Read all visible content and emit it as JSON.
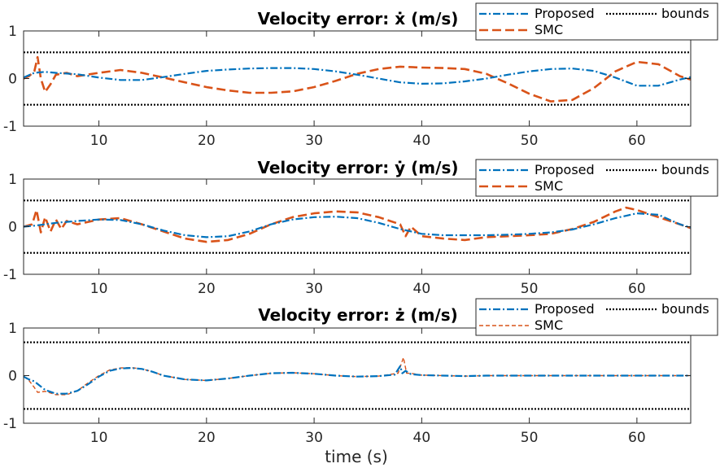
{
  "chart_data": [
    {
      "type": "line",
      "title": "Velocity error: ẋ (m/s)",
      "xlabel": "",
      "ylabel": "",
      "xlim": [
        3,
        65
      ],
      "ylim": [
        -1,
        1
      ],
      "xticks": [
        10,
        20,
        30,
        40,
        50,
        60
      ],
      "yticks": [
        1,
        0,
        -1
      ],
      "grid": false,
      "legend": "top-right, 2 columns",
      "legend_labels": [
        "Proposed",
        "SMC",
        "bounds"
      ],
      "bounds": [
        0.55,
        -0.55
      ],
      "series": [
        {
          "name": "Proposed",
          "style": "dash-dot",
          "color": "#0072BD",
          "x": [
            3,
            4,
            5,
            6,
            8,
            10,
            12,
            14,
            16,
            18,
            20,
            22,
            24,
            26,
            28,
            30,
            32,
            34,
            36,
            38,
            40,
            42,
            44,
            46,
            48,
            50,
            52,
            54,
            56,
            58,
            60,
            62,
            64,
            65
          ],
          "y": [
            0.02,
            0.12,
            0.14,
            0.12,
            0.09,
            0.02,
            -0.03,
            -0.03,
            0.03,
            0.1,
            0.16,
            0.19,
            0.21,
            0.22,
            0.22,
            0.2,
            0.15,
            0.08,
            0.0,
            -0.08,
            -0.11,
            -0.1,
            -0.06,
            0.0,
            0.08,
            0.15,
            0.2,
            0.21,
            0.16,
            0.02,
            -0.15,
            -0.15,
            -0.02,
            0.03
          ]
        },
        {
          "name": "SMC",
          "style": "dashed",
          "color": "#D95319",
          "x": [
            3,
            3.5,
            4,
            4.3,
            4.6,
            5,
            5.5,
            6,
            7,
            8,
            10,
            12,
            14,
            16,
            18,
            20,
            22,
            24,
            26,
            28,
            30,
            32,
            34,
            36,
            38,
            40,
            42,
            44,
            46,
            48,
            50,
            52,
            54,
            56,
            58,
            60,
            62,
            64,
            65
          ],
          "y": [
            0.0,
            0.05,
            0.15,
            0.45,
            0.0,
            -0.28,
            -0.12,
            0.08,
            0.12,
            0.05,
            0.12,
            0.18,
            0.12,
            0.02,
            -0.08,
            -0.18,
            -0.25,
            -0.3,
            -0.3,
            -0.27,
            -0.18,
            -0.05,
            0.1,
            0.2,
            0.25,
            0.23,
            0.22,
            0.2,
            0.1,
            -0.1,
            -0.32,
            -0.48,
            -0.45,
            -0.2,
            0.15,
            0.35,
            0.3,
            0.05,
            -0.02
          ]
        },
        {
          "name": "bounds",
          "style": "dotted",
          "color": "#000000"
        }
      ]
    },
    {
      "type": "line",
      "title": "Velocity error: ẏ (m/s)",
      "xlabel": "",
      "ylabel": "",
      "xlim": [
        3,
        65
      ],
      "ylim": [
        -1,
        1
      ],
      "xticks": [
        10,
        20,
        30,
        40,
        50,
        60
      ],
      "yticks": [
        1,
        0,
        -1
      ],
      "grid": false,
      "legend": "top-right, 2 columns",
      "legend_labels": [
        "Proposed",
        "SMC",
        "bounds"
      ],
      "bounds": [
        0.55,
        -0.55
      ],
      "series": [
        {
          "name": "Proposed",
          "style": "dash-dot",
          "color": "#0072BD",
          "x": [
            3,
            4,
            5,
            6,
            7,
            8,
            10,
            12,
            14,
            16,
            18,
            20,
            22,
            24,
            26,
            28,
            30,
            32,
            34,
            36,
            38,
            40,
            42,
            44,
            46,
            48,
            50,
            52,
            54,
            56,
            58,
            60,
            62,
            64,
            65
          ],
          "y": [
            0.0,
            0.02,
            0.05,
            0.08,
            0.1,
            0.12,
            0.15,
            0.14,
            0.05,
            -0.08,
            -0.18,
            -0.22,
            -0.2,
            -0.1,
            0.05,
            0.15,
            0.2,
            0.21,
            0.18,
            0.08,
            -0.05,
            -0.15,
            -0.18,
            -0.18,
            -0.18,
            -0.17,
            -0.15,
            -0.12,
            -0.06,
            0.05,
            0.18,
            0.28,
            0.25,
            0.05,
            -0.02
          ]
        },
        {
          "name": "SMC",
          "style": "dashed",
          "color": "#D95319",
          "x": [
            3,
            3.8,
            4.2,
            4.6,
            5,
            5.5,
            6,
            6.5,
            7,
            8,
            10,
            12,
            14,
            16,
            18,
            20,
            22,
            24,
            26,
            28,
            30,
            32,
            34,
            36,
            38,
            38.5,
            39,
            40,
            42,
            44,
            46,
            48,
            50,
            52,
            54,
            56,
            58,
            59,
            60,
            62,
            64,
            65
          ],
          "y": [
            0.0,
            0.05,
            0.35,
            -0.12,
            0.2,
            -0.1,
            0.15,
            -0.05,
            0.12,
            0.05,
            0.15,
            0.18,
            0.05,
            -0.1,
            -0.25,
            -0.32,
            -0.28,
            -0.15,
            0.05,
            0.2,
            0.28,
            0.32,
            0.3,
            0.2,
            0.05,
            -0.2,
            0.0,
            -0.2,
            -0.25,
            -0.28,
            -0.22,
            -0.2,
            -0.18,
            -0.15,
            -0.05,
            0.1,
            0.32,
            0.4,
            0.35,
            0.2,
            0.05,
            -0.03
          ]
        },
        {
          "name": "bounds",
          "style": "dotted",
          "color": "#000000"
        }
      ]
    },
    {
      "type": "line",
      "title": "Velocity error: ż (m/s)",
      "xlabel": "time (s)",
      "ylabel": "",
      "xlim": [
        3,
        65
      ],
      "ylim": [
        -1,
        1
      ],
      "xticks": [
        10,
        20,
        30,
        40,
        50,
        60
      ],
      "yticks": [
        1,
        0,
        -1
      ],
      "grid": false,
      "legend": "top-right, 2 columns",
      "legend_labels": [
        "Proposed",
        "SMC",
        "bounds"
      ],
      "bounds": [
        0.7,
        -0.7
      ],
      "series": [
        {
          "name": "Proposed",
          "style": "dash-dot",
          "color": "#0072BD",
          "x": [
            3,
            3.5,
            4,
            5,
            6,
            7,
            8,
            9,
            10,
            11,
            12,
            13,
            14,
            15,
            16,
            18,
            20,
            22,
            24,
            26,
            28,
            30,
            32,
            34,
            36,
            37.5,
            38,
            38.2,
            38.5,
            39,
            40,
            42,
            44,
            46,
            48,
            50,
            52,
            55,
            58,
            60,
            62,
            65
          ],
          "y": [
            -0.02,
            -0.08,
            -0.12,
            -0.3,
            -0.38,
            -0.38,
            -0.32,
            -0.18,
            -0.02,
            0.1,
            0.15,
            0.16,
            0.14,
            0.08,
            0.0,
            -0.08,
            -0.1,
            -0.06,
            0.0,
            0.05,
            0.06,
            0.04,
            0.0,
            -0.02,
            -0.01,
            0.02,
            0.2,
            0.05,
            0.1,
            0.03,
            0.01,
            0.0,
            -0.01,
            0.0,
            0.0,
            0.0,
            0.0,
            0.0,
            0.0,
            0.0,
            0.0,
            0.0
          ]
        },
        {
          "name": "SMC",
          "style": "dashed-thin",
          "color": "#D95319",
          "x": [
            3,
            3.5,
            4,
            4.3,
            5,
            6,
            7,
            8,
            9,
            10,
            11,
            12,
            13,
            14,
            15,
            16,
            18,
            20,
            22,
            24,
            26,
            28,
            30,
            32,
            34,
            36,
            37.8,
            38.3,
            38.6,
            39,
            40,
            42,
            44,
            46,
            48,
            50,
            52,
            55,
            58,
            60,
            62,
            65
          ],
          "y": [
            -0.02,
            -0.1,
            -0.25,
            -0.35,
            -0.33,
            -0.4,
            -0.4,
            -0.32,
            -0.15,
            0.0,
            0.12,
            0.16,
            0.17,
            0.14,
            0.08,
            0.0,
            -0.08,
            -0.1,
            -0.06,
            0.0,
            0.05,
            0.06,
            0.04,
            0.0,
            -0.02,
            -0.01,
            0.05,
            0.38,
            0.05,
            0.05,
            0.01,
            0.0,
            -0.01,
            0.0,
            0.0,
            0.0,
            0.0,
            0.0,
            0.0,
            0.0,
            0.0,
            0.0
          ]
        },
        {
          "name": "bounds",
          "style": "dotted",
          "color": "#000000"
        }
      ]
    }
  ]
}
